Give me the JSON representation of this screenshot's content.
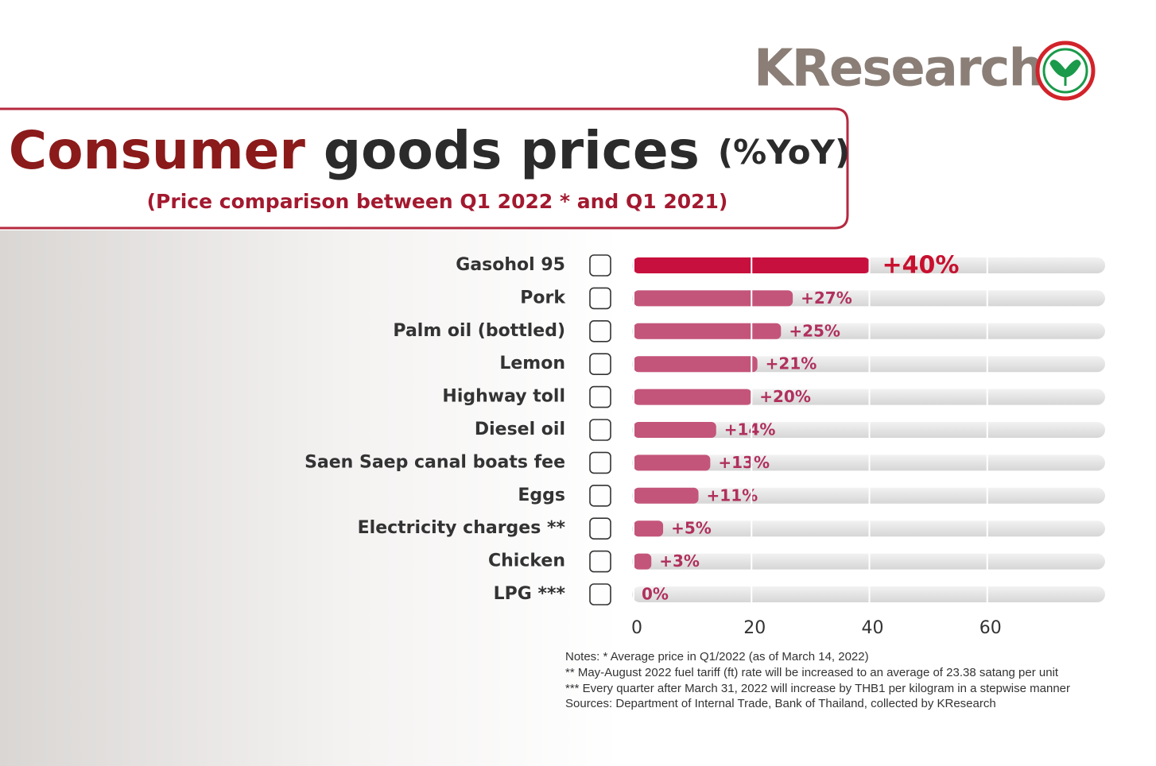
{
  "brand": "KResearch",
  "chart_data": {
    "type": "bar",
    "orientation": "horizontal",
    "title_parts": [
      "Consumer",
      "goods prices",
      "(%YoY)"
    ],
    "subtitle": "(Price comparison between Q1 2022 * and Q1 2021)",
    "categories": [
      "Gasohol 95",
      "Pork",
      "Palm oil (bottled)",
      "Lemon",
      "Highway toll",
      "Diesel oil",
      "Saen Saep canal boats fee",
      "Eggs",
      "Electricity charges **",
      "Chicken",
      "LPG ***"
    ],
    "values": [
      40,
      27,
      25,
      21,
      20,
      14,
      13,
      11,
      5,
      3,
      0
    ],
    "value_labels": [
      "+40%",
      "+27%",
      "+25%",
      "+21%",
      "+20%",
      "+14%",
      "+13%",
      "+11%",
      "+5%",
      "+3%",
      "0%"
    ],
    "colors": [
      "#c8103e",
      "#c4557a",
      "#c4557a",
      "#c4557a",
      "#c4557a",
      "#c4557a",
      "#c4557a",
      "#c4557a",
      "#c4557a",
      "#c4557a",
      "#c4557a"
    ],
    "xlim": [
      0,
      80
    ],
    "xticks": [
      0,
      20,
      40,
      60
    ],
    "grid": true,
    "notes": [
      "Notes: * Average price in Q1/2022 (as of March 14, 2022)",
      "** May-August 2022 fuel tariff (ft) rate will be increased to an average of 23.38 satang per unit",
      "*** Every quarter after March 31, 2022 will increase by THB1 per kilogram in a stepwise manner",
      "Sources: Department of Internal Trade, Bank of Thailand, collected by KResearch"
    ]
  }
}
